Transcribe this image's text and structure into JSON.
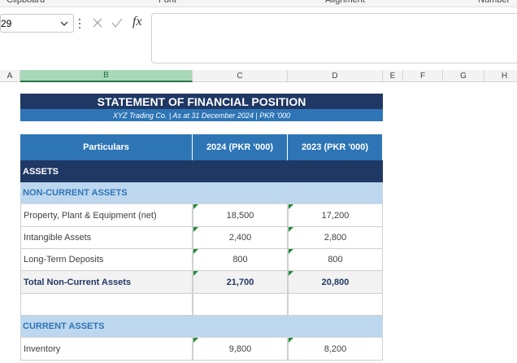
{
  "ribbon": {
    "groups": [
      "Clipboard",
      "Font",
      "Alignment",
      "Number"
    ]
  },
  "name_box": "29",
  "formula_bar": {
    "function_label": "fx"
  },
  "columns": [
    "A",
    "B",
    "C",
    "D",
    "E",
    "F",
    "G",
    "H"
  ],
  "sheet": {
    "title": "STATEMENT OF FINANCIAL POSITION",
    "subtitle": "XYZ Trading Co. | As at 31 December 2024 | PKR '000",
    "header": [
      "Particulars",
      "2024 (PKR '000)",
      "2023 (PKR '000)"
    ],
    "rows": [
      {
        "kind": "section",
        "cells": [
          "ASSETS"
        ]
      },
      {
        "kind": "subsection",
        "cells": [
          "NON-CURRENT ASSETS"
        ]
      },
      {
        "kind": "item",
        "cells": [
          "Property, Plant & Equipment (net)",
          "18,500",
          "17,200"
        ]
      },
      {
        "kind": "item",
        "cells": [
          "Intangible Assets",
          "2,400",
          "2,800"
        ]
      },
      {
        "kind": "item",
        "cells": [
          "Long-Term Deposits",
          "800",
          "800"
        ]
      },
      {
        "kind": "total",
        "cells": [
          "Total Non-Current Assets",
          "21,700",
          "20,800"
        ]
      },
      {
        "kind": "blank"
      },
      {
        "kind": "subsection",
        "cells": [
          "CURRENT ASSETS"
        ]
      },
      {
        "kind": "item",
        "cells": [
          "Inventory",
          "9,800",
          "8,200"
        ]
      }
    ]
  }
}
